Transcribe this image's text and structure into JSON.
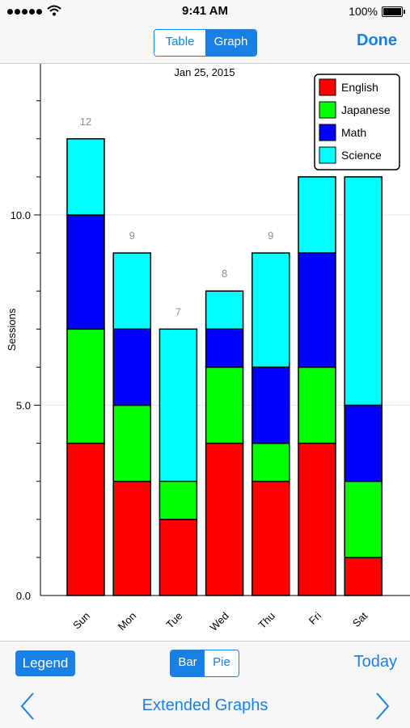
{
  "status_bar": {
    "time": "9:41 AM",
    "battery_text": "100%"
  },
  "nav": {
    "segments": [
      "Table",
      "Graph"
    ],
    "active_segment": 1,
    "done_label": "Done"
  },
  "toolbar": {
    "legend_label": "Legend",
    "segments": [
      "Bar",
      "Pie"
    ],
    "active_segment": 0,
    "today_label": "Today",
    "title": "Extended Graphs"
  },
  "colors": {
    "accent": "#1a7fe3",
    "English": "#ff0000",
    "Japanese": "#00ff00",
    "Math": "#0000ff",
    "Science": "#00ffff"
  },
  "chart_data": {
    "type": "bar",
    "stacked": true,
    "title": "Jan 25, 2015",
    "xlabel": "",
    "ylabel": "Sessions",
    "categories": [
      "Sun",
      "Mon",
      "Tue",
      "Wed",
      "Thu",
      "Fri",
      "Sat"
    ],
    "series": [
      {
        "name": "English",
        "color": "#ff0000",
        "values": [
          4,
          3,
          2,
          4,
          3,
          4,
          1
        ]
      },
      {
        "name": "Japanese",
        "color": "#00ff00",
        "values": [
          3,
          2,
          1,
          2,
          1,
          2,
          2
        ]
      },
      {
        "name": "Math",
        "color": "#0000ff",
        "values": [
          3,
          2,
          0,
          1,
          2,
          3,
          2
        ]
      },
      {
        "name": "Science",
        "color": "#00ffff",
        "values": [
          2,
          2,
          4,
          1,
          3,
          2,
          6
        ]
      }
    ],
    "totals": [
      12,
      9,
      7,
      8,
      9,
      11,
      11
    ],
    "total_labels": [
      "12",
      "9",
      "7",
      "8",
      "9",
      "",
      ""
    ],
    "y_ticks": [
      "0.0",
      "5.0",
      "10.0"
    ],
    "ylim": [
      0,
      14
    ],
    "legend_position": "top-right",
    "grid": true
  }
}
